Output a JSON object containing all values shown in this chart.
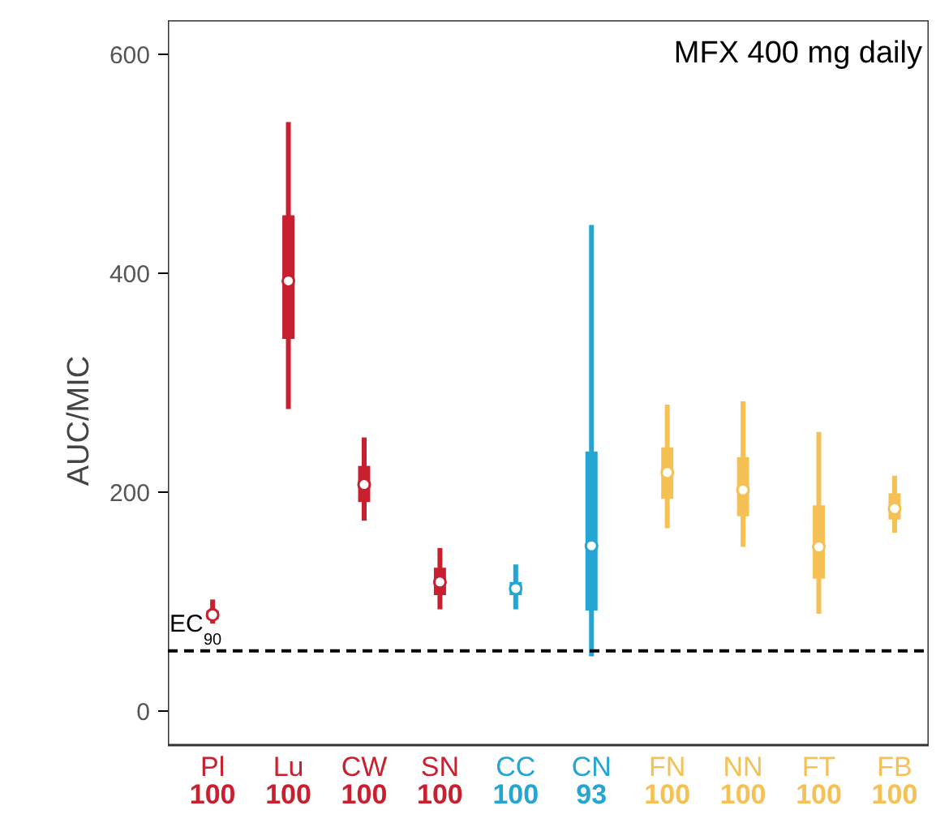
{
  "chart_data": {
    "type": "box",
    "title": "MFX 400 mg daily",
    "ylabel": "AUC/MIC",
    "categories": [
      "Pl",
      "Lu",
      "CW",
      "SN",
      "CC",
      "CN",
      "FN",
      "NN",
      "FT",
      "FB"
    ],
    "colors": [
      "#c8202f",
      "#c8202f",
      "#c8202f",
      "#c8202f",
      "#25a5d4",
      "#25a5d4",
      "#f5c155",
      "#f5c155",
      "#f5c155",
      "#f5c155"
    ],
    "boxes": [
      {
        "low": 80,
        "q1": 84,
        "median": 88,
        "q3": 92,
        "high": 102
      },
      {
        "low": 276,
        "q1": 340,
        "median": 393,
        "q3": 453,
        "high": 538
      },
      {
        "low": 174,
        "q1": 191,
        "median": 207,
        "q3": 224,
        "high": 250
      },
      {
        "low": 93,
        "q1": 106,
        "median": 118,
        "q3": 131,
        "high": 149
      },
      {
        "low": 93,
        "q1": 106,
        "median": 112,
        "q3": 118,
        "high": 134
      },
      {
        "low": 50,
        "q1": 92,
        "median": 151,
        "q3": 237,
        "high": 444
      },
      {
        "low": 167,
        "q1": 194,
        "median": 218,
        "q3": 241,
        "high": 280
      },
      {
        "low": 150,
        "q1": 178,
        "median": 202,
        "q3": 232,
        "high": 283
      },
      {
        "low": 89,
        "q1": 121,
        "median": 150,
        "q3": 188,
        "high": 255
      },
      {
        "low": 163,
        "q1": 175,
        "median": 185,
        "q3": 199,
        "high": 215
      }
    ],
    "annotations": [
      "100",
      "100",
      "100",
      "100",
      "100",
      "93",
      "100",
      "100",
      "100",
      "100"
    ],
    "ref_lines": [
      {
        "axis": "y",
        "value": 55,
        "label": "EC$_{90}$",
        "color": "#000000",
        "line_style": "dashed"
      }
    ],
    "ylim": [
      -31,
      631
    ],
    "yticks": [
      0,
      200,
      400,
      600
    ],
    "grid": false
  }
}
